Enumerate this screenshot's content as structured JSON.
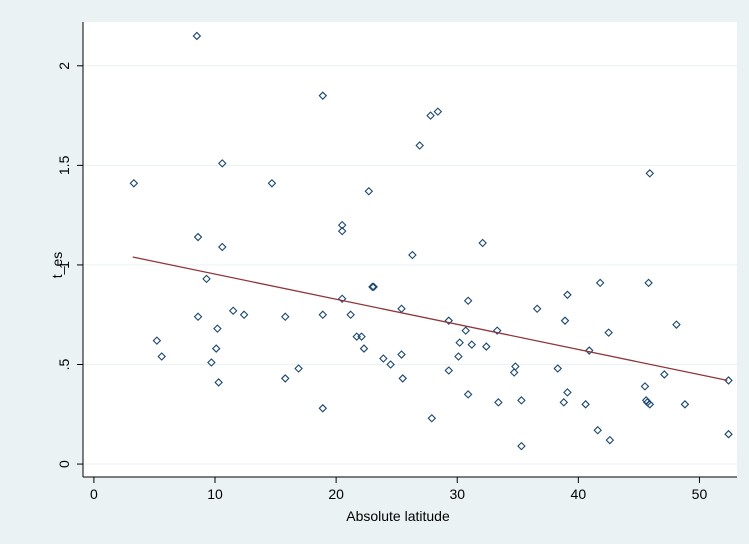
{
  "chart_data": {
    "type": "scatter",
    "x_label": "Absolute latitude",
    "y_label": "t_es",
    "x": [
      3.3,
      5.2,
      5.6,
      8.5,
      8.6,
      8.6,
      9.3,
      9.7,
      10.1,
      10.2,
      10.3,
      10.6,
      10.6,
      11.5,
      12.4,
      14.7,
      15.8,
      15.8,
      16.9,
      18.9,
      18.9,
      18.9,
      20.5,
      20.5,
      20.5,
      21.2,
      21.7,
      22.1,
      22.3,
      22.7,
      23.0,
      23.1,
      23.9,
      24.5,
      25.4,
      25.4,
      25.5,
      26.3,
      26.9,
      27.8,
      28.4,
      27.9,
      29.3,
      29.3,
      30.2,
      30.1,
      30.7,
      30.9,
      31.2,
      30.9,
      32.1,
      32.4,
      33.3,
      33.4,
      34.8,
      34.7,
      35.3,
      35.3,
      36.6,
      38.3,
      38.8,
      38.9,
      39.1,
      39.1,
      40.6,
      40.9,
      41.6,
      41.8,
      42.5,
      42.6,
      45.5,
      45.6,
      45.7,
      45.9,
      45.9,
      45.8,
      47.1,
      48.1,
      48.8,
      52.4,
      52.4
    ],
    "values": [
      1.41,
      0.62,
      0.54,
      2.15,
      1.14,
      0.74,
      0.93,
      0.51,
      0.58,
      0.68,
      0.41,
      1.51,
      1.09,
      0.77,
      0.75,
      1.41,
      0.74,
      0.43,
      0.48,
      1.85,
      0.75,
      0.28,
      1.2,
      1.17,
      0.83,
      0.75,
      0.64,
      0.64,
      0.58,
      1.37,
      0.89,
      0.89,
      0.53,
      0.5,
      0.78,
      0.55,
      0.43,
      1.05,
      1.6,
      1.75,
      1.77,
      0.23,
      0.72,
      0.47,
      0.61,
      0.54,
      0.67,
      0.82,
      0.6,
      0.35,
      1.11,
      0.59,
      0.67,
      0.31,
      0.49,
      0.46,
      0.32,
      0.09,
      0.78,
      0.48,
      0.31,
      0.72,
      0.85,
      0.36,
      0.3,
      0.57,
      0.17,
      0.91,
      0.66,
      0.12,
      0.39,
      0.32,
      0.31,
      0.3,
      1.46,
      0.91,
      0.45,
      0.7,
      0.3,
      0.42,
      0.15
    ],
    "color": "#1a476f",
    "fit": {
      "x": [
        3.2,
        52.3
      ],
      "values": [
        1.04,
        0.42
      ],
      "color": "#90353b"
    },
    "xlim": [
      -0.9,
      53.1
    ],
    "ylim": [
      -0.065,
      2.22
    ],
    "xticks": [
      0,
      10,
      20,
      30,
      40,
      50
    ],
    "yticks": [
      0,
      {
        "value": 0.5,
        "label": ".5"
      },
      1,
      1.5,
      2
    ],
    "grid": true
  }
}
